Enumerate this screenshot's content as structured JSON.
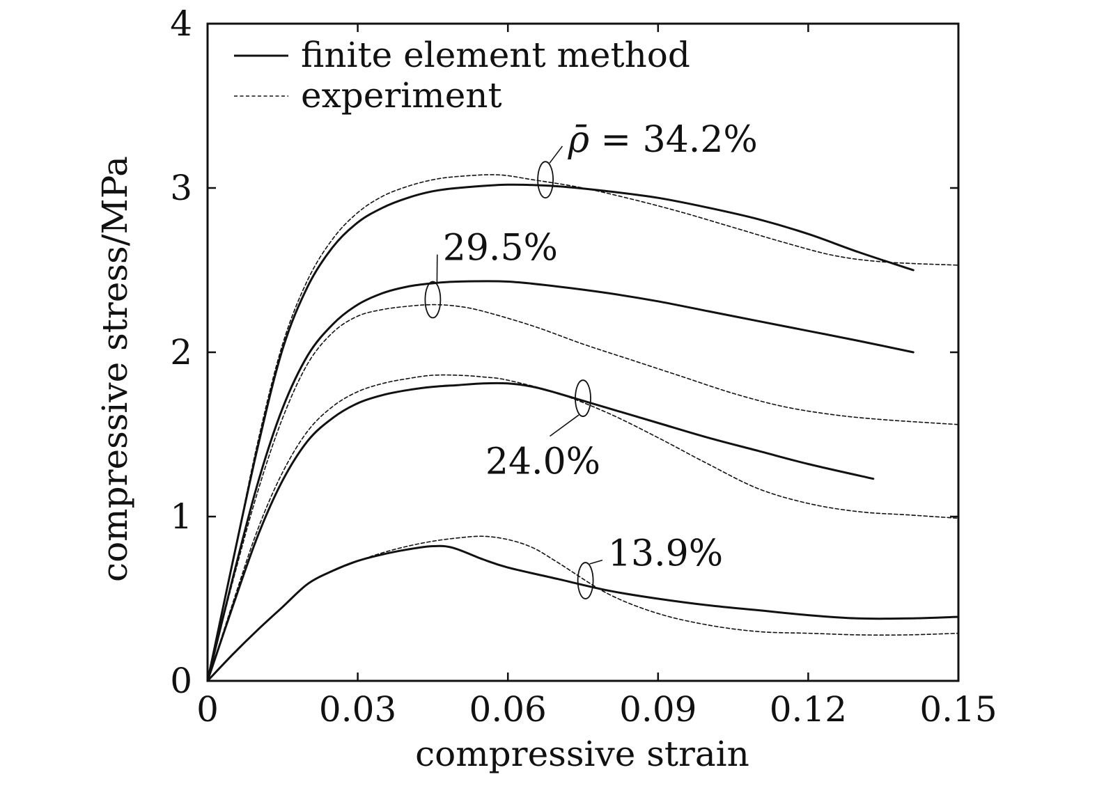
{
  "chart_data": {
    "type": "line",
    "title": "",
    "xlabel": "compressive strain",
    "ylabel": "compressive stress/MPa",
    "xlim": [
      0,
      0.15
    ],
    "ylim": [
      0,
      4
    ],
    "x_ticks": [
      0,
      0.03,
      0.06,
      0.09,
      0.12,
      0.15
    ],
    "x_tick_labels": [
      "0",
      "0.03",
      "0.06",
      "0.09",
      "0.12",
      "0.15"
    ],
    "y_ticks": [
      0,
      1,
      2,
      3,
      4
    ],
    "y_tick_labels": [
      "0",
      "1",
      "2",
      "3",
      "4"
    ],
    "grid": false,
    "legend": {
      "placement": "top-left",
      "entries": [
        {
          "label": "finite element method",
          "style": "solid"
        },
        {
          "label": "experiment",
          "style": "dashed"
        }
      ]
    },
    "annotations": [
      {
        "prefix": "ρ̄ = ",
        "text": "34.2%",
        "x": 0.0675,
        "y": 3.05,
        "label_x": 0.072,
        "label_y": 3.28
      },
      {
        "prefix": "",
        "text": "29.5%",
        "x": 0.045,
        "y": 2.32,
        "label_x": 0.047,
        "label_y": 2.62
      },
      {
        "prefix": "",
        "text": "24.0%",
        "x": 0.075,
        "y": 1.72,
        "label_x": 0.067,
        "label_y": 1.32
      },
      {
        "prefix": "",
        "text": "13.9%",
        "x": 0.0755,
        "y": 0.61,
        "label_x": 0.08,
        "label_y": 0.76
      }
    ],
    "series": [
      {
        "style": "solid",
        "group": "34.2%",
        "x": [
          0,
          0.005,
          0.01,
          0.015,
          0.02,
          0.025,
          0.03,
          0.035,
          0.04,
          0.045,
          0.05,
          0.06,
          0.07,
          0.08,
          0.09,
          0.1,
          0.11,
          0.12,
          0.13,
          0.141
        ],
        "y": [
          0,
          0.72,
          1.42,
          2.02,
          2.4,
          2.64,
          2.79,
          2.88,
          2.94,
          2.98,
          3.0,
          3.02,
          3.01,
          2.98,
          2.94,
          2.88,
          2.81,
          2.72,
          2.61,
          2.5
        ]
      },
      {
        "style": "dashed",
        "group": "34.2%",
        "x": [
          0,
          0.005,
          0.01,
          0.015,
          0.02,
          0.025,
          0.03,
          0.035,
          0.04,
          0.045,
          0.05,
          0.058,
          0.065,
          0.075,
          0.085,
          0.095,
          0.105,
          0.115,
          0.125,
          0.135,
          0.15
        ],
        "y": [
          0,
          0.72,
          1.45,
          2.05,
          2.44,
          2.69,
          2.85,
          2.95,
          3.01,
          3.05,
          3.07,
          3.08,
          3.05,
          3.0,
          2.93,
          2.85,
          2.76,
          2.67,
          2.59,
          2.55,
          2.53
        ]
      },
      {
        "style": "solid",
        "group": "29.5%",
        "x": [
          0,
          0.005,
          0.01,
          0.015,
          0.02,
          0.025,
          0.03,
          0.035,
          0.04,
          0.045,
          0.05,
          0.06,
          0.07,
          0.08,
          0.09,
          0.1,
          0.11,
          0.12,
          0.13,
          0.141
        ],
        "y": [
          0,
          0.62,
          1.2,
          1.66,
          1.98,
          2.17,
          2.29,
          2.36,
          2.4,
          2.42,
          2.43,
          2.43,
          2.4,
          2.36,
          2.31,
          2.25,
          2.19,
          2.13,
          2.07,
          2.0
        ]
      },
      {
        "style": "dashed",
        "group": "29.5%",
        "x": [
          0,
          0.005,
          0.01,
          0.015,
          0.02,
          0.025,
          0.03,
          0.035,
          0.04,
          0.045,
          0.05,
          0.055,
          0.065,
          0.075,
          0.085,
          0.095,
          0.105,
          0.115,
          0.125,
          0.135,
          0.15
        ],
        "y": [
          0,
          0.6,
          1.15,
          1.6,
          1.93,
          2.12,
          2.22,
          2.26,
          2.28,
          2.29,
          2.28,
          2.25,
          2.16,
          2.05,
          1.95,
          1.85,
          1.75,
          1.67,
          1.62,
          1.59,
          1.56
        ]
      },
      {
        "style": "solid",
        "group": "24.0%",
        "x": [
          0,
          0.005,
          0.01,
          0.015,
          0.02,
          0.025,
          0.03,
          0.035,
          0.04,
          0.045,
          0.05,
          0.055,
          0.06,
          0.065,
          0.07,
          0.08,
          0.09,
          0.1,
          0.11,
          0.12,
          0.133
        ],
        "y": [
          0,
          0.45,
          0.88,
          1.22,
          1.46,
          1.6,
          1.69,
          1.74,
          1.77,
          1.79,
          1.8,
          1.81,
          1.81,
          1.79,
          1.75,
          1.66,
          1.57,
          1.48,
          1.4,
          1.32,
          1.23
        ]
      },
      {
        "style": "dashed",
        "group": "24.0%",
        "x": [
          0,
          0.005,
          0.01,
          0.015,
          0.02,
          0.025,
          0.03,
          0.035,
          0.04,
          0.045,
          0.05,
          0.055,
          0.06,
          0.07,
          0.08,
          0.09,
          0.1,
          0.11,
          0.12,
          0.13,
          0.14,
          0.15
        ],
        "y": [
          0,
          0.47,
          0.92,
          1.27,
          1.52,
          1.67,
          1.76,
          1.81,
          1.84,
          1.86,
          1.86,
          1.85,
          1.83,
          1.75,
          1.63,
          1.48,
          1.32,
          1.17,
          1.08,
          1.03,
          1.01,
          0.99
        ]
      },
      {
        "style": "solid",
        "group": "13.9%",
        "x": [
          0,
          0.005,
          0.01,
          0.015,
          0.02,
          0.025,
          0.03,
          0.035,
          0.04,
          0.045,
          0.049,
          0.055,
          0.06,
          0.07,
          0.08,
          0.09,
          0.1,
          0.11,
          0.12,
          0.13,
          0.14,
          0.15
        ],
        "y": [
          0,
          0.16,
          0.31,
          0.45,
          0.59,
          0.67,
          0.73,
          0.77,
          0.8,
          0.82,
          0.81,
          0.74,
          0.69,
          0.62,
          0.55,
          0.5,
          0.46,
          0.43,
          0.4,
          0.38,
          0.38,
          0.39
        ]
      },
      {
        "style": "dashed",
        "group": "13.9%",
        "x": [
          0,
          0.005,
          0.01,
          0.015,
          0.02,
          0.025,
          0.03,
          0.035,
          0.04,
          0.045,
          0.05,
          0.055,
          0.06,
          0.065,
          0.07,
          0.08,
          0.09,
          0.1,
          0.11,
          0.12,
          0.13,
          0.14,
          0.15
        ],
        "y": [
          0,
          0.16,
          0.31,
          0.45,
          0.59,
          0.67,
          0.73,
          0.78,
          0.82,
          0.85,
          0.87,
          0.88,
          0.86,
          0.81,
          0.72,
          0.53,
          0.41,
          0.34,
          0.3,
          0.29,
          0.28,
          0.28,
          0.29
        ]
      }
    ]
  }
}
